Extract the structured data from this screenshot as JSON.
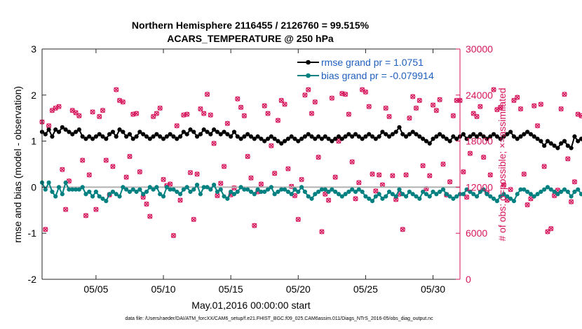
{
  "chart_data": {
    "type": "line",
    "title_line1": "Northern Hemisphere 2116455 / 2126760 = 99.515%",
    "title_line2": "ACARS_TEMPERATURE @ 250 hPa",
    "xlabel": "May.01,2016 00:00:00 start",
    "ylabel_left": "rmse and bias (model - observation)",
    "ylabel_right": "# of obs: o=possible; ×=assimilated",
    "footer": "data file: /Users/raeder/DAI/ATM_forcXX/CAM6_setup/f.e21.FHIST_BGC.f09_025.CAM6assim.011/Diags_NTrS_2016-05/obs_diag_output.nc",
    "xlim": [
      1.0,
      32.0
    ],
    "ylim_left": [
      -2,
      3
    ],
    "ylim_right": [
      0,
      30000
    ],
    "x_ticks": [
      5,
      10,
      15,
      20,
      25,
      30
    ],
    "x_tick_labels": [
      "05/05",
      "05/10",
      "05/15",
      "05/20",
      "05/25",
      "05/30"
    ],
    "y_left_ticks": [
      -2,
      -1,
      0,
      1,
      2,
      3
    ],
    "y_left_tick_labels": [
      "-2",
      "-1",
      "0",
      "1",
      "2",
      "3"
    ],
    "y_right_ticks": [
      0,
      6000,
      12000,
      18000,
      24000,
      30000
    ],
    "y_right_tick_labels": [
      "0",
      "6000",
      "12000",
      "18000",
      "24000",
      "30000"
    ],
    "legend_location": "top-right",
    "colors": {
      "rmse": "#000000",
      "bias": "#008080",
      "obs": "#d6165c",
      "zero_line": "#b0b0b0",
      "legend_text": "#1f5fbf",
      "axis": "#262626"
    },
    "time_step_days": 0.25,
    "series": [
      {
        "name": "rmse grand pr = 1.0751",
        "axis": "left",
        "values": [
          1.2,
          1.15,
          1.25,
          1.1,
          1.25,
          1.2,
          1.3,
          1.25,
          1.2,
          1.15,
          1.2,
          1.25,
          1.1,
          1.05,
          1.1,
          1.05,
          1.1,
          1.15,
          1.1,
          1.05,
          1.15,
          1.2,
          1.1,
          1.25,
          1.2,
          1.1,
          1.15,
          1.05,
          1.1,
          1.2,
          1.15,
          1.1,
          1.05,
          1.1,
          1.15,
          1.1,
          1.05,
          1.1,
          1.15,
          1.1,
          1.05,
          1.1,
          1.2,
          1.15,
          1.25,
          1.2,
          1.1,
          1.15,
          1.25,
          1.2,
          1.15,
          1.25,
          1.2,
          1.15,
          1.2,
          1.15,
          1.1,
          1.2,
          1.1,
          1.05,
          1.1,
          1.15,
          1.1,
          1.05,
          1.1,
          1.05,
          1.0,
          1.05,
          1.1,
          1.05,
          1.0,
          0.95,
          1.0,
          1.05,
          1.1,
          1.05,
          1.0,
          1.05,
          1.1,
          1.15,
          1.1,
          1.05,
          1.1,
          1.05,
          1.1,
          1.05,
          1.0,
          1.05,
          1.1,
          1.05,
          1.1,
          1.15,
          1.1,
          1.15,
          1.1,
          1.05,
          1.1,
          1.15,
          1.1,
          1.05,
          1.1,
          1.2,
          1.15,
          1.1,
          1.15,
          1.2,
          1.3,
          1.15,
          1.1,
          1.15,
          1.2,
          1.15,
          1.1,
          1.05,
          1.0,
          0.95,
          1.05,
          1.1,
          1.15,
          1.1,
          1.05,
          1.0,
          1.1,
          1.05,
          1.1,
          1.15,
          1.05,
          1.1,
          1.15,
          1.1,
          1.15,
          1.1,
          1.05,
          1.1,
          1.15,
          1.1,
          1.05,
          1.1,
          1.15,
          1.2,
          1.1,
          1.05,
          1.1,
          1.15,
          1.2,
          1.15,
          1.1,
          1.05,
          1.0,
          0.9,
          1.0,
          0.95,
          0.9,
          0.85,
          0.95,
          1.0,
          0.9,
          0.85,
          1.1,
          1.0,
          1.05,
          0.9,
          0.95,
          1.0,
          0.95,
          0.95,
          0.95,
          0.9,
          0.95
        ]
      },
      {
        "name": "bias grand pr = -0.079914",
        "axis": "left",
        "values": [
          0.1,
          -0.05,
          0.1,
          -0.1,
          -0.2,
          0.0,
          -0.15,
          0.1,
          -0.05,
          -0.05,
          -0.05,
          -0.05,
          0.0,
          -0.15,
          -0.1,
          -0.2,
          -0.1,
          -0.2,
          -0.25,
          -0.3,
          -0.15,
          -0.1,
          -0.15,
          -0.2,
          0.0,
          -0.05,
          -0.1,
          -0.05,
          -0.1,
          -0.05,
          -0.15,
          -0.1,
          0.0,
          -0.05,
          0.0,
          -0.15,
          -0.2,
          0.0,
          -0.05,
          -0.05,
          -0.1,
          -0.15,
          -0.05,
          0.0,
          -0.1,
          -0.05,
          0.05,
          -0.15,
          0.0,
          0.0,
          -0.05,
          0.05,
          -0.1,
          -0.05,
          -0.2,
          -0.25,
          -0.1,
          -0.15,
          -0.1,
          0.0,
          -0.05,
          -0.05,
          -0.1,
          -0.15,
          -0.05,
          -0.1,
          -0.1,
          -0.05,
          0.0,
          -0.15,
          -0.1,
          -0.05,
          -0.05,
          -0.1,
          -0.15,
          -0.05,
          -0.1,
          0.0,
          -0.1,
          -0.2,
          -0.25,
          -0.15,
          -0.1,
          -0.05,
          -0.05,
          -0.1,
          -0.05,
          -0.1,
          -0.15,
          -0.2,
          -0.15,
          -0.1,
          -0.05,
          -0.1,
          -0.05,
          -0.1,
          -0.2,
          -0.25,
          -0.3,
          -0.2,
          -0.15,
          -0.25,
          -0.2,
          -0.1,
          -0.15,
          -0.2,
          -0.05,
          -0.15,
          -0.2,
          -0.1,
          -0.15,
          -0.2,
          -0.25,
          -0.1,
          -0.15,
          -0.2,
          -0.1,
          -0.15,
          -0.1,
          -0.05,
          -0.15,
          -0.2,
          -0.25,
          -0.2,
          -0.15,
          -0.15,
          -0.05,
          -0.1,
          -0.15,
          -0.2,
          -0.1,
          -0.05,
          -0.15,
          -0.2,
          -0.25,
          -0.3,
          -0.2,
          -0.15,
          -0.2,
          -0.25,
          -0.3,
          -0.15,
          -0.05,
          -0.05,
          -0.1,
          -0.15,
          -0.2,
          -0.15,
          -0.1,
          -0.05,
          0.0,
          -0.05,
          -0.1,
          -0.15,
          -0.1,
          -0.05,
          -0.1,
          -0.2,
          -0.1,
          -0.05,
          -0.15,
          -0.1,
          -0.05,
          -0.05,
          -0.1,
          -0.1,
          -0.05,
          -0.1,
          -0.05,
          -0.1,
          -0.05
        ]
      },
      {
        "name": "possible observations",
        "axis": "right",
        "marker": "o",
        "values": [
          20500,
          6500,
          20000,
          22000,
          22300,
          22500,
          14300,
          9100,
          12800,
          22000,
          21700,
          21300,
          15500,
          8300,
          13600,
          21800,
          9100,
          21200,
          22000,
          15500,
          11000,
          14700,
          24700,
          23300,
          23100,
          13300,
          16000,
          21500,
          21600,
          14000,
          10700,
          9800,
          8200,
          21200,
          21600,
          22300,
          13000,
          12200,
          12400,
          5700,
          20000,
          10300,
          21400,
          21500,
          13900,
          7800,
          13700,
          22200,
          21600,
          24100,
          21400,
          17700,
          10900,
          12500,
          14700,
          20300,
          11000,
          11900,
          23500,
          22400,
          21300,
          16000,
          13200,
          7000,
          11400,
          12400,
          22600,
          21600,
          17400,
          13800,
          20700,
          23300,
          22800,
          14400,
          12100,
          10900,
          7800,
          13000,
          24000,
          24700,
          21600,
          23100,
          15900,
          6200,
          11100,
          10300,
          23600,
          13300,
          18000,
          24200,
          24100,
          21500,
          15300,
          10500,
          12600,
          24700,
          24400,
          22500,
          13700,
          11500,
          13600,
          12300,
          22300,
          21200,
          13500,
          10400,
          11100,
          6500,
          13600,
          21000,
          23800,
          22300,
          23300,
          14800,
          11800,
          13500,
          22700,
          22000,
          23400,
          15000,
          11000,
          12700,
          21300,
          23300,
          23300,
          14000,
          10700,
          16400,
          21600,
          21200,
          22500,
          15900,
          11300,
          13600,
          24700,
          22100,
          22400,
          12300,
          10300,
          11700,
          23300,
          23700,
          22200,
          13700,
          9700,
          10500,
          22600,
          20000,
          22800,
          14700,
          6200,
          6600,
          10900,
          11600,
          22200,
          24100,
          15700,
          10100,
          12700,
          21500,
          21300,
          21500,
          14100,
          11300,
          12800,
          21900,
          14500,
          6300,
          0
        ]
      },
      {
        "name": "assimilated observations",
        "axis": "right",
        "marker": "x",
        "values": [
          20500,
          6500,
          20000,
          22000,
          22300,
          22500,
          14300,
          9100,
          12800,
          22000,
          21700,
          21300,
          15500,
          8300,
          13600,
          21800,
          9100,
          21200,
          22000,
          15500,
          11000,
          14700,
          24700,
          23300,
          23100,
          13300,
          16000,
          21500,
          21600,
          14000,
          10700,
          9800,
          8200,
          21200,
          21600,
          22300,
          13000,
          12200,
          12400,
          5700,
          20000,
          10300,
          21400,
          21500,
          13900,
          7800,
          13700,
          22200,
          21600,
          24100,
          21400,
          17700,
          10900,
          12500,
          14700,
          20300,
          11000,
          11900,
          23500,
          22400,
          21300,
          16000,
          13200,
          7000,
          11400,
          12400,
          22600,
          21600,
          17400,
          13800,
          20700,
          23300,
          22800,
          14400,
          12100,
          10900,
          7800,
          13000,
          24000,
          24700,
          21600,
          23100,
          15900,
          6200,
          11100,
          10300,
          23600,
          13300,
          18000,
          24200,
          24100,
          21500,
          15300,
          10500,
          12600,
          24700,
          24400,
          22500,
          13700,
          11500,
          13600,
          12300,
          22300,
          21200,
          13500,
          10400,
          11100,
          6500,
          13600,
          21000,
          23800,
          22300,
          23300,
          14800,
          11800,
          13500,
          22700,
          22000,
          23400,
          15000,
          11000,
          12700,
          21300,
          23300,
          23300,
          14000,
          10700,
          16400,
          21600,
          21200,
          22500,
          15900,
          11300,
          13600,
          24700,
          22100,
          22400,
          12300,
          10300,
          11700,
          23300,
          23700,
          22200,
          13700,
          9700,
          10500,
          22600,
          20000,
          22800,
          14700,
          6200,
          6600,
          10900,
          11600,
          22200,
          24100,
          15700,
          10100,
          12700,
          21500,
          21300,
          21500,
          14100,
          11300,
          12800,
          21900,
          14500,
          6300,
          0
        ]
      }
    ]
  }
}
